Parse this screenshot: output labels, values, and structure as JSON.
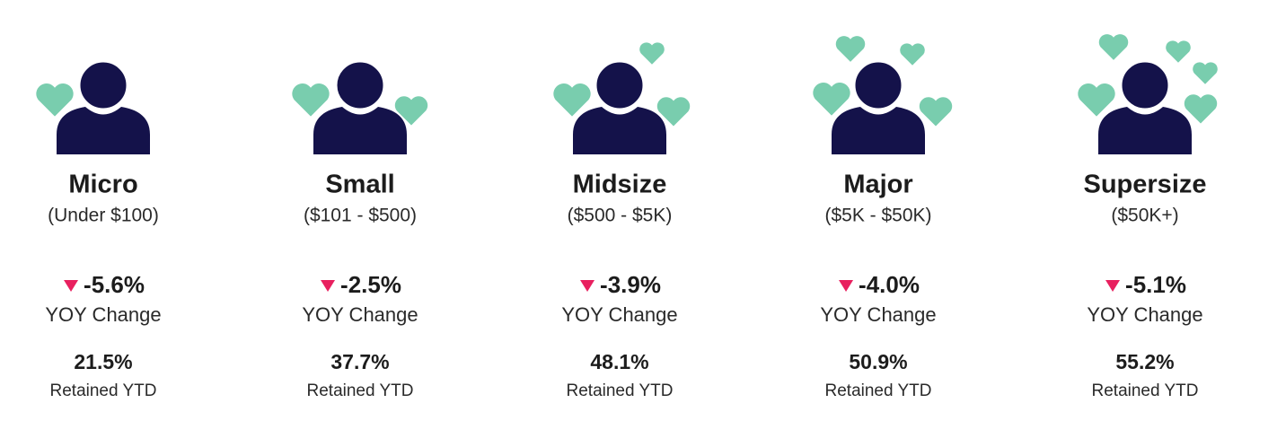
{
  "tiers": [
    {
      "name": "Micro",
      "range": "(Under $100)",
      "yoy": "-5.6%",
      "yoy_label": "YOY Change",
      "retained": "21.5%",
      "retained_label": "Retained YTD"
    },
    {
      "name": "Small",
      "range": "($101 - $500)",
      "yoy": "-2.5%",
      "yoy_label": "YOY Change",
      "retained": "37.7%",
      "retained_label": "Retained YTD"
    },
    {
      "name": "Midsize",
      "range": "($500 - $5K)",
      "yoy": "-3.9%",
      "yoy_label": "YOY Change",
      "retained": "48.1%",
      "retained_label": "Retained YTD"
    },
    {
      "name": "Major",
      "range": "($5K - $50K)",
      "yoy": "-4.0%",
      "yoy_label": "YOY Change",
      "retained": "50.9%",
      "retained_label": "Retained YTD"
    },
    {
      "name": "Supersize",
      "range": "($50K+)",
      "yoy": "-5.1%",
      "yoy_label": "YOY Change",
      "retained": "55.2%",
      "retained_label": "Retained YTD"
    }
  ]
}
